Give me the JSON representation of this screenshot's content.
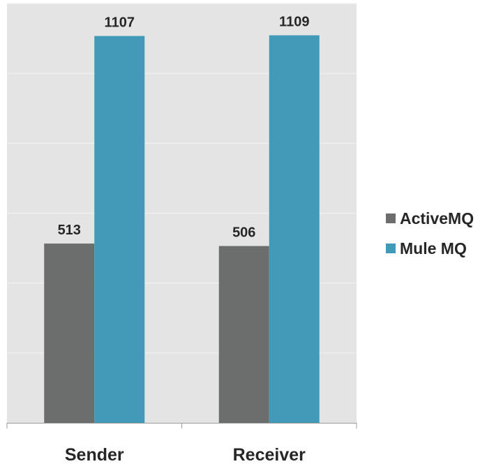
{
  "chart_data": {
    "type": "bar",
    "categories": [
      "Sender",
      "Receiver"
    ],
    "series": [
      {
        "name": "ActiveMQ",
        "values": [
          513,
          506
        ],
        "color": "#6b6e6d"
      },
      {
        "name": "Mule MQ",
        "values": [
          1107,
          1109
        ],
        "color": "#4299b8"
      }
    ],
    "ylim": [
      0,
      1200
    ],
    "grid": true,
    "legend": "right",
    "plot_background": "#e4e4e4",
    "gridline_color": "#f2f2f2"
  }
}
